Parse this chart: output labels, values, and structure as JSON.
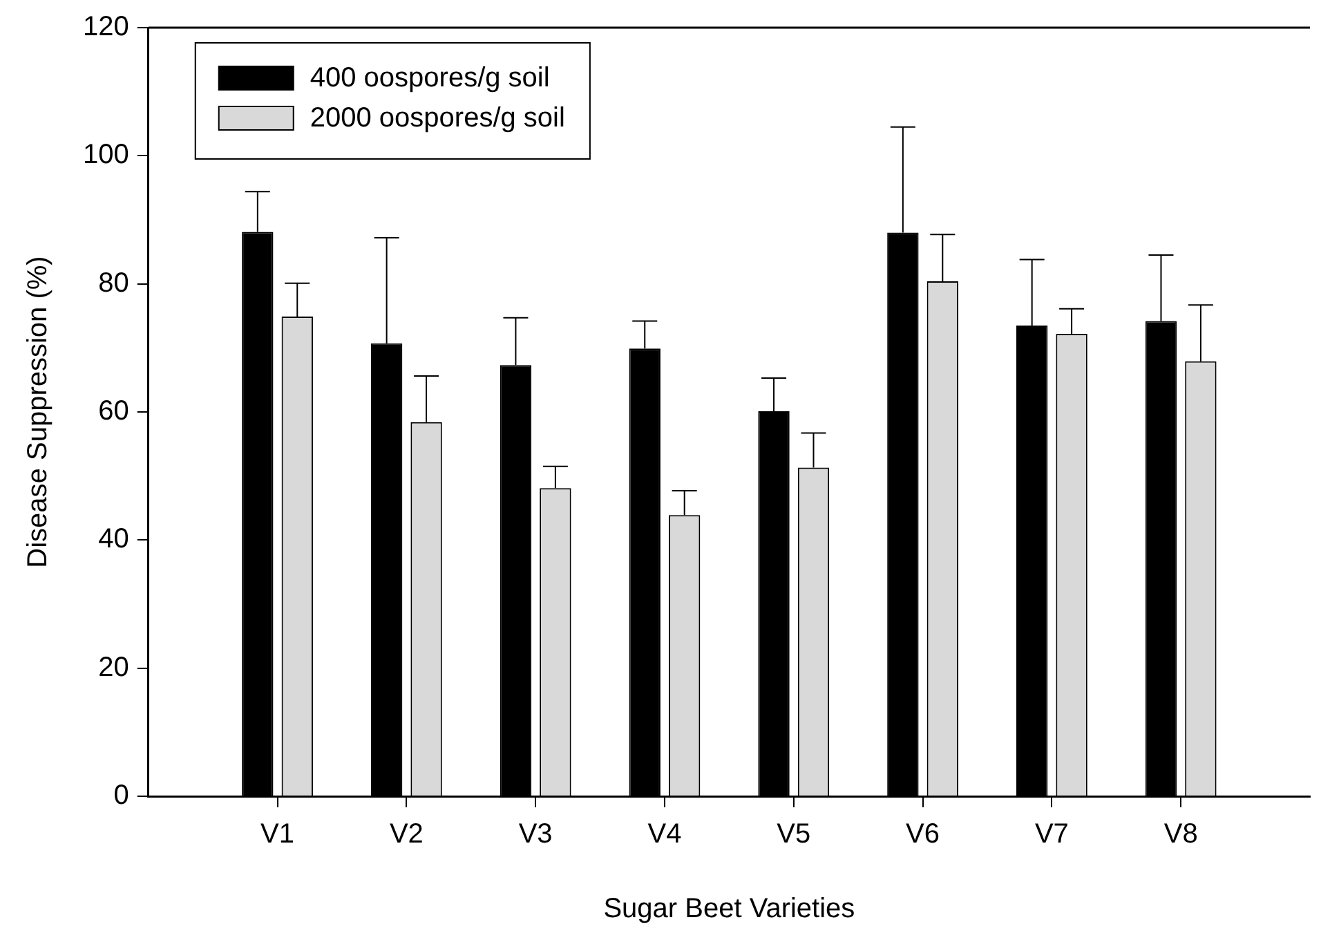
{
  "chart_data": {
    "type": "bar",
    "xlabel": "Sugar Beet Varieties",
    "ylabel": "Disease Suppression (%)",
    "categories": [
      "V1",
      "V2",
      "V3",
      "V4",
      "V5",
      "V6",
      "V7",
      "V8"
    ],
    "series": [
      {
        "name": "400 oospores/g soil",
        "color": "#000000",
        "values": [
          88.1,
          70.7,
          67.3,
          69.9,
          60.1,
          88.0,
          73.5,
          74.2
        ],
        "errors": [
          [
            88.1,
            94.4
          ],
          [
            70.7,
            87.2
          ],
          [
            67.3,
            74.7
          ],
          [
            69.9,
            74.2
          ],
          [
            60.1,
            65.3
          ],
          [
            88.0,
            104.5
          ],
          [
            73.5,
            83.8
          ],
          [
            74.2,
            84.5
          ]
        ]
      },
      {
        "name": "2000 oospores/g soil",
        "color": "#d9d9d9",
        "values": [
          74.9,
          58.4,
          48.1,
          43.9,
          51.3,
          80.4,
          72.2,
          67.9
        ],
        "errors": [
          [
            74.9,
            80.1
          ],
          [
            58.4,
            65.6
          ],
          [
            48.1,
            51.5
          ],
          [
            43.9,
            47.7
          ],
          [
            51.3,
            56.7
          ],
          [
            80.4,
            87.7
          ],
          [
            72.2,
            76.1
          ],
          [
            67.9,
            76.7
          ]
        ]
      }
    ],
    "ylim": [
      0,
      120
    ],
    "yticks": [
      0,
      20,
      40,
      60,
      80,
      100,
      120
    ],
    "grid": false,
    "legend": "top left"
  }
}
